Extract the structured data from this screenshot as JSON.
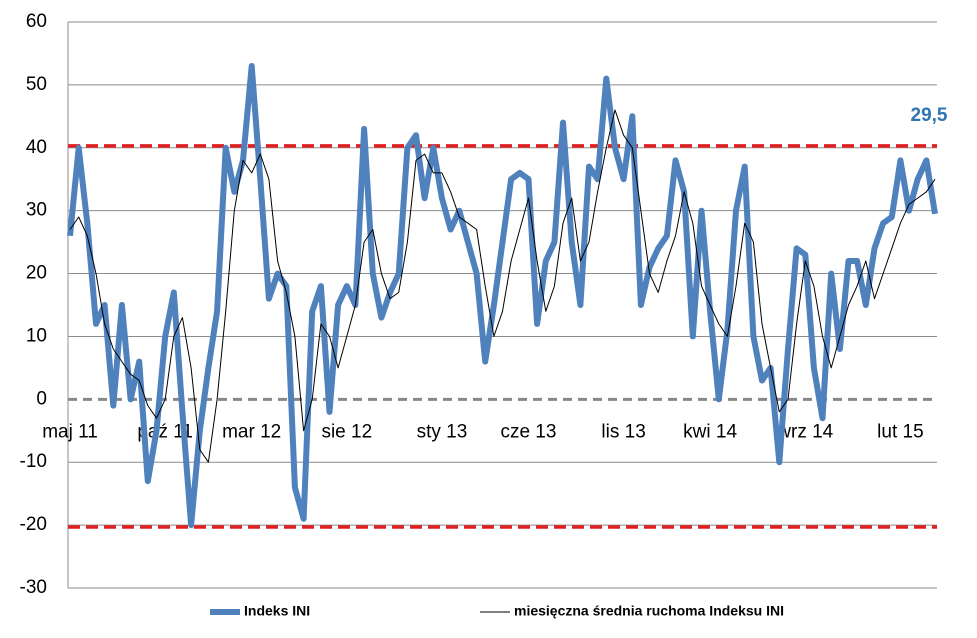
{
  "chart_data": {
    "type": "line",
    "categories": [
      "maj 11",
      null,
      null,
      null,
      null,
      null,
      null,
      null,
      null,
      null,
      null,
      "paź 11",
      null,
      null,
      null,
      null,
      null,
      null,
      null,
      null,
      null,
      "mar 12",
      null,
      null,
      null,
      null,
      null,
      null,
      null,
      null,
      null,
      null,
      "sie 12",
      null,
      null,
      null,
      null,
      null,
      null,
      null,
      null,
      null,
      null,
      "sty 13",
      null,
      null,
      null,
      null,
      null,
      null,
      null,
      null,
      null,
      "cze 13",
      null,
      null,
      null,
      null,
      null,
      null,
      null,
      null,
      null,
      null,
      "lis 13",
      null,
      null,
      null,
      null,
      null,
      null,
      null,
      null,
      null,
      "kwi 14",
      null,
      null,
      null,
      null,
      null,
      null,
      null,
      null,
      null,
      null,
      "wrz 14",
      null,
      null,
      null,
      null,
      null,
      null,
      null,
      null,
      null,
      null,
      "lut 15",
      null,
      null,
      null,
      null
    ],
    "series": [
      {
        "name": "Indeks INI",
        "color": "#4f81bd",
        "values": [
          26,
          40,
          28,
          12,
          15,
          -1,
          15,
          0,
          6,
          -13,
          -5,
          10,
          17,
          -2,
          -20,
          -5,
          5,
          14,
          40,
          33,
          38,
          53,
          35,
          16,
          20,
          18,
          -14,
          -19,
          14,
          18,
          -2,
          15,
          18,
          15,
          43,
          20,
          13,
          17,
          20,
          40,
          42,
          32,
          40,
          32,
          27,
          30,
          25,
          20,
          6,
          15,
          25,
          35,
          36,
          35,
          12,
          22,
          25,
          44,
          25,
          15,
          37,
          35,
          51,
          40,
          35,
          45,
          15,
          21,
          24,
          26,
          38,
          33,
          10,
          30,
          14,
          0,
          11,
          30,
          37,
          10,
          3,
          5,
          -10,
          8,
          24,
          23,
          5,
          -3,
          20,
          8,
          22,
          22,
          15,
          24,
          28,
          29,
          38,
          30,
          35,
          38,
          29.5
        ],
        "value_labels": [
          null,
          null,
          null,
          null,
          null,
          null,
          null,
          null,
          null,
          null,
          null,
          null,
          null,
          null,
          null,
          null,
          null,
          null,
          null,
          null,
          null,
          null,
          null,
          null,
          null,
          null,
          null,
          null,
          null,
          null,
          null,
          null,
          null,
          null,
          null,
          null,
          null,
          null,
          null,
          null,
          null,
          null,
          null,
          null,
          null,
          null,
          null,
          null,
          null,
          null,
          null,
          null,
          null,
          null,
          null,
          null,
          null,
          null,
          null,
          null,
          null,
          null,
          null,
          null,
          null,
          null,
          null,
          null,
          null,
          null,
          null,
          null,
          null,
          null,
          null,
          null,
          null,
          null,
          null,
          null,
          null,
          null,
          null,
          null,
          null,
          null,
          null,
          null,
          null,
          null,
          null,
          null,
          null,
          null,
          null,
          null,
          null,
          null,
          null,
          null,
          "29,5"
        ]
      },
      {
        "name": "miesięczna średnia ruchoma Indeksu INI",
        "color": "#000000",
        "values": [
          27,
          29,
          26,
          20,
          12,
          8,
          6,
          4,
          3,
          -1,
          -3,
          0,
          10,
          13,
          5,
          -8,
          -10,
          0,
          14,
          30,
          38,
          36,
          39,
          35,
          22,
          17,
          10,
          -5,
          0,
          12,
          10,
          5,
          10,
          15,
          25,
          27,
          20,
          16,
          17,
          25,
          38,
          39,
          36,
          36,
          33,
          29,
          28,
          27,
          18,
          10,
          14,
          22,
          27,
          32,
          22,
          14,
          18,
          28,
          32,
          22,
          25,
          33,
          40,
          46,
          42,
          40,
          30,
          20,
          17,
          22,
          26,
          33,
          28,
          18,
          15,
          12,
          10,
          18,
          28,
          25,
          12,
          5,
          -2,
          0,
          12,
          22,
          18,
          10,
          5,
          10,
          15,
          18,
          22,
          16,
          20,
          24,
          28,
          31,
          32,
          33,
          35
        ]
      }
    ],
    "reference_lines": [
      {
        "value": 40.3,
        "color": "#e02020"
      },
      {
        "value": -20.3,
        "color": "#e02020"
      }
    ],
    "ylim": [
      -30,
      60
    ],
    "yticks": [
      -30,
      -20,
      -10,
      0,
      10,
      20,
      30,
      40,
      50,
      60
    ],
    "grid": true,
    "legend": "bottom"
  }
}
